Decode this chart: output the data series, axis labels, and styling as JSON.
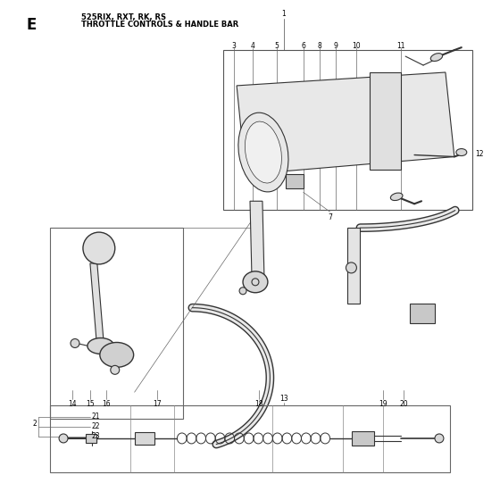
{
  "title_letter": "E",
  "title_models": "525RIX, RXT, RK, RS",
  "title_desc": "THROTTLE CONTROLS & HANDLE BAR",
  "bg_color": "#ffffff",
  "line_color": "#333333",
  "gray_fill": "#d8d8d8",
  "light_fill": "#eeeeee",
  "fig_w": 5.6,
  "fig_h": 5.6,
  "dpi": 100,
  "label_fs": 5.5
}
